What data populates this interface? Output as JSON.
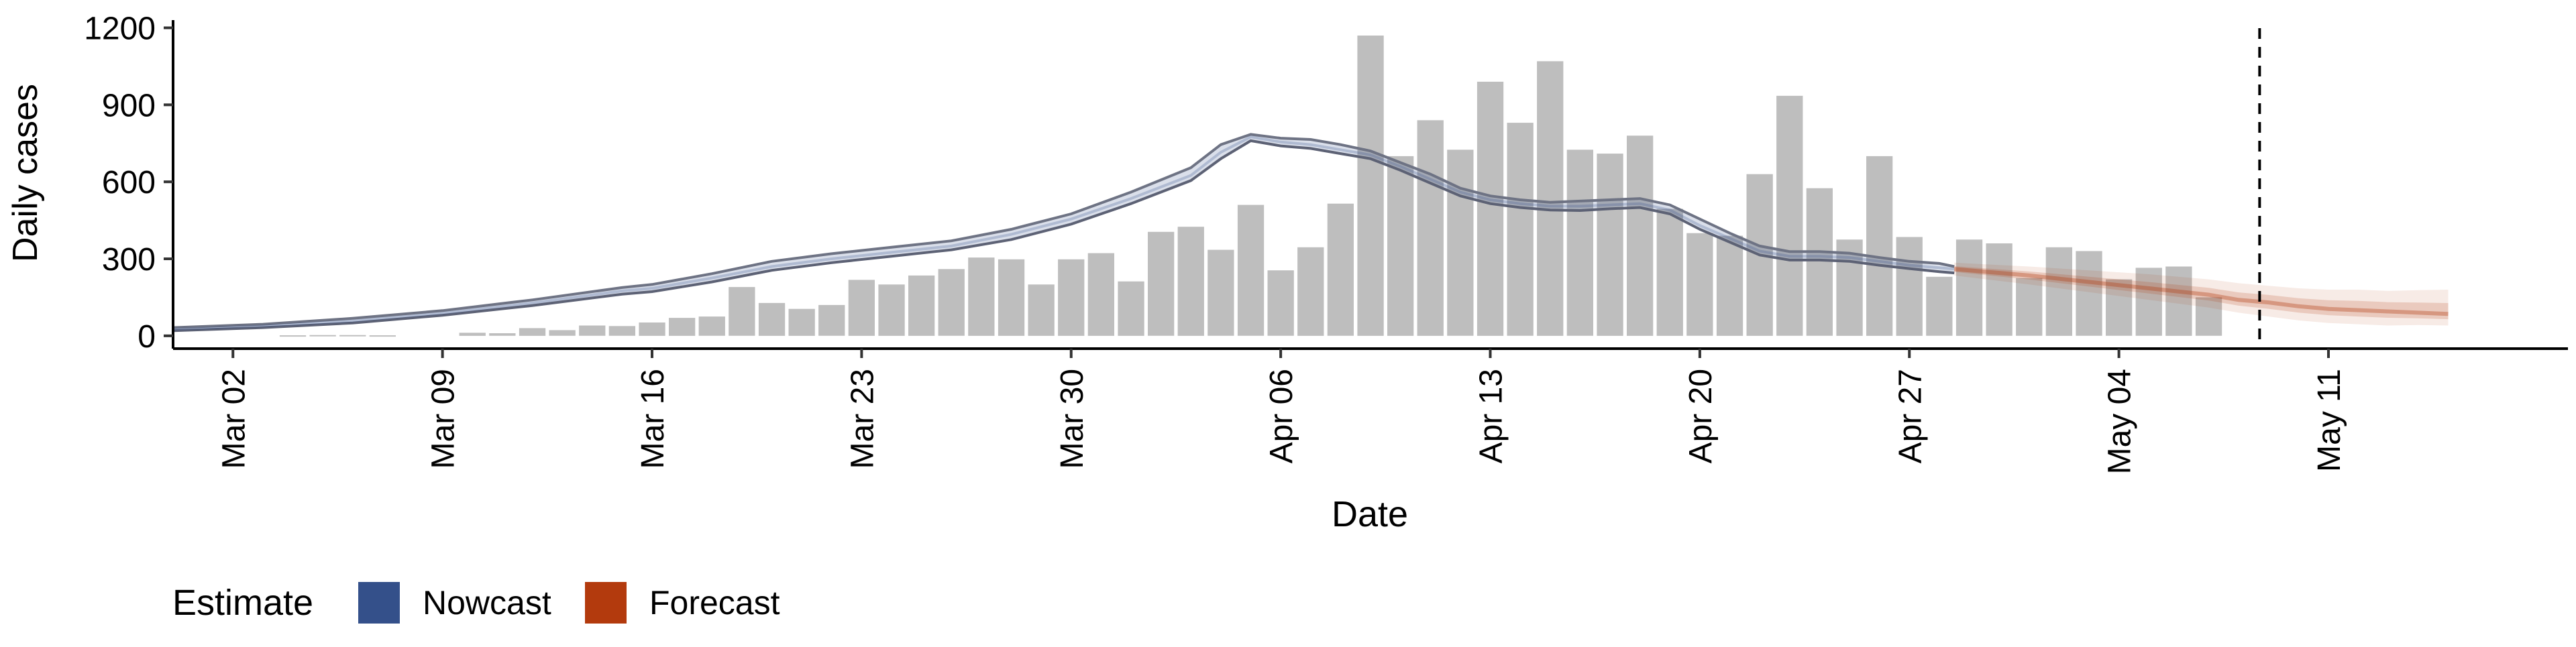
{
  "chart_data": {
    "type": "bar",
    "xlabel": "Date",
    "ylabel": "Daily cases",
    "ylim": [
      -50,
      1230
    ],
    "y_ticks": [
      0,
      300,
      600,
      900,
      1200
    ],
    "x_ticks": [
      {
        "day": 2,
        "label": "Mar 02"
      },
      {
        "day": 9,
        "label": "Mar 09"
      },
      {
        "day": 16,
        "label": "Mar 16"
      },
      {
        "day": 23,
        "label": "Mar 23"
      },
      {
        "day": 30,
        "label": "Mar 30"
      },
      {
        "day": 37,
        "label": "Apr 06"
      },
      {
        "day": 44,
        "label": "Apr 13"
      },
      {
        "day": 51,
        "label": "Apr 20"
      },
      {
        "day": 58,
        "label": "Apr 27"
      },
      {
        "day": 65,
        "label": "May 04"
      },
      {
        "day": 72,
        "label": "May 11"
      }
    ],
    "grid": false,
    "legend_position": "bottom-left",
    "legend": {
      "title": "Estimate",
      "items": [
        {
          "label": "Nowcast",
          "color": "#34508a"
        },
        {
          "label": "Forecast",
          "color": "#b33a0d"
        }
      ]
    },
    "date_axis_note": "day index counts days of March; Mar 02 = day 2, Apr 06 = day 37",
    "cases": {
      "days": [
        4,
        5,
        6,
        7,
        8,
        9,
        10,
        11,
        12,
        13,
        14,
        15,
        16,
        17,
        18,
        19,
        20,
        21,
        22,
        23,
        24,
        25,
        26,
        27,
        28,
        29,
        30,
        31,
        32,
        33,
        34,
        35,
        36,
        37,
        38,
        39,
        40,
        41,
        42,
        43,
        44,
        45,
        46,
        47,
        48,
        49,
        50,
        51,
        52,
        53,
        54,
        55,
        56,
        57,
        58,
        59,
        60,
        61,
        62,
        63,
        64,
        65,
        66,
        67,
        68,
        69
      ],
      "values": [
        2,
        3,
        3,
        2,
        0,
        0,
        12,
        10,
        30,
        22,
        40,
        38,
        52,
        70,
        75,
        190,
        128,
        105,
        120,
        218,
        200,
        235,
        260,
        305,
        298,
        200,
        298,
        322,
        212,
        405,
        425,
        335,
        510,
        255,
        345,
        515,
        1170,
        700,
        840,
        725,
        990,
        830,
        1070,
        725,
        710,
        780,
        495,
        400,
        390,
        630,
        935,
        575,
        375,
        700,
        385,
        230,
        375,
        360,
        225,
        345,
        330,
        220,
        265,
        270,
        150,
        0
      ],
      "color": "#bebebe"
    },
    "nowcast": {
      "days": [
        0,
        3,
        6,
        9,
        12,
        15,
        16,
        18,
        20,
        22,
        24,
        26,
        28,
        30,
        32,
        34,
        35,
        36,
        37,
        38,
        39,
        40,
        41,
        42,
        43,
        44,
        45,
        46,
        47,
        48,
        49,
        50,
        51,
        52,
        53,
        54,
        55,
        56,
        57,
        58,
        59,
        59.5
      ],
      "median": [
        25,
        38,
        58,
        88,
        128,
        175,
        185,
        225,
        270,
        300,
        325,
        350,
        395,
        455,
        535,
        625,
        715,
        775,
        755,
        745,
        725,
        705,
        660,
        610,
        560,
        530,
        515,
        505,
        505,
        510,
        515,
        490,
        430,
        380,
        330,
        310,
        310,
        305,
        290,
        275,
        265,
        260
      ],
      "upper": [
        32,
        45,
        68,
        98,
        140,
        188,
        200,
        242,
        290,
        320,
        345,
        370,
        415,
        475,
        560,
        655,
        745,
        785,
        770,
        765,
        745,
        720,
        675,
        630,
        575,
        545,
        530,
        520,
        525,
        530,
        535,
        510,
        455,
        400,
        350,
        328,
        328,
        322,
        305,
        290,
        282,
        270
      ],
      "lower": [
        20,
        32,
        50,
        80,
        118,
        162,
        172,
        210,
        255,
        285,
        310,
        335,
        375,
        435,
        515,
        605,
        690,
        760,
        740,
        730,
        710,
        690,
        645,
        595,
        545,
        515,
        500,
        490,
        488,
        495,
        500,
        475,
        415,
        365,
        315,
        295,
        295,
        290,
        275,
        262,
        250,
        245
      ],
      "color": "#34508a"
    },
    "forecast": {
      "days": [
        59.5,
        62,
        64,
        66,
        68,
        69,
        70,
        71,
        72,
        73,
        74,
        75,
        76
      ],
      "median": [
        260,
        235,
        210,
        185,
        160,
        140,
        130,
        115,
        105,
        100,
        95,
        90,
        85
      ],
      "upper": [
        285,
        270,
        255,
        240,
        220,
        205,
        195,
        185,
        180,
        180,
        175,
        178,
        180
      ],
      "lower": [
        235,
        200,
        170,
        140,
        110,
        90,
        75,
        60,
        50,
        45,
        40,
        42,
        40
      ],
      "color": "#b33a0d"
    },
    "vline_day": 69.7
  }
}
